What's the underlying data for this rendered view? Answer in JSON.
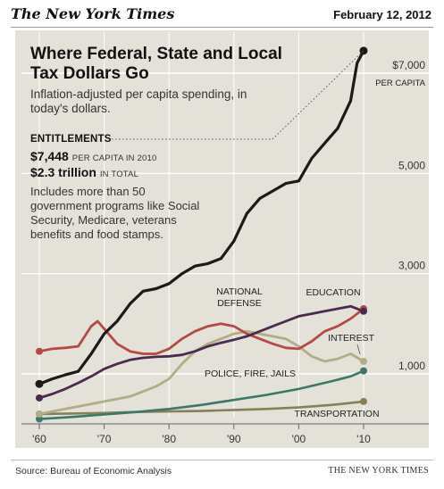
{
  "header": {
    "masthead": "The New York Times",
    "date": "February 12, 2012"
  },
  "footer": {
    "source": "Source: Bureau of Economic Analysis",
    "credit": "THE NEW YORK TIMES"
  },
  "annotation": {
    "heading": "ENTITLEMENTS",
    "value_1": "$7,448",
    "value_1_note": "PER CAPITA IN 2010",
    "value_2": "$2.3 trillion",
    "value_2_note": "IN TOTAL",
    "description": "Includes more than 50 government programs like Social Security, Medicare, veterans benefits and food stamps."
  },
  "chart_data": {
    "type": "line",
    "title": "Where Federal, State and Local Tax Dollars Go",
    "subtitle": "Inflation-adjusted per capita spending, in today's dollars.",
    "xlabel": "",
    "ylabel": "",
    "xlim": [
      1959,
      2011
    ],
    "ylim": [
      0,
      7700
    ],
    "x_ticks": [
      1960,
      1970,
      1980,
      1990,
      2000,
      2010
    ],
    "x_tick_labels": [
      "'60",
      "'70",
      "'80",
      "'90",
      "'00",
      "'10"
    ],
    "y_ticks": [
      1000,
      3000,
      5000,
      7000
    ],
    "y_tick_labels": [
      "1,000",
      "3,000",
      "5,000",
      "$7,000"
    ],
    "y_unit_label": "PER CAPITA",
    "grid": true,
    "series": [
      {
        "name": "ENTITLEMENTS",
        "color": "#1a1a1a",
        "width": 3.2,
        "x": [
          1960,
          1962,
          1964,
          1966,
          1968,
          1970,
          1972,
          1974,
          1976,
          1978,
          1980,
          1982,
          1984,
          1986,
          1988,
          1990,
          1992,
          1994,
          1996,
          1998,
          2000,
          2002,
          2004,
          2006,
          2008,
          2009,
          2010
        ],
        "y": [
          800,
          900,
          980,
          1050,
          1400,
          1800,
          2050,
          2400,
          2650,
          2700,
          2800,
          3000,
          3150,
          3200,
          3300,
          3650,
          4200,
          4500,
          4650,
          4800,
          4850,
          5300,
          5600,
          5900,
          6450,
          7200,
          7448
        ]
      },
      {
        "name": "EDUCATION",
        "color": "#4a2a4f",
        "width": 2.8,
        "x": [
          1960,
          1962,
          1964,
          1966,
          1968,
          1970,
          1972,
          1974,
          1976,
          1978,
          1980,
          1982,
          1984,
          1986,
          1988,
          1990,
          1992,
          1994,
          1996,
          1998,
          2000,
          2002,
          2004,
          2006,
          2008,
          2010
        ],
        "y": [
          520,
          600,
          700,
          820,
          950,
          1100,
          1200,
          1280,
          1320,
          1340,
          1350,
          1380,
          1450,
          1550,
          1620,
          1680,
          1750,
          1850,
          1950,
          2050,
          2150,
          2200,
          2250,
          2300,
          2350,
          2250
        ]
      },
      {
        "name": "NATIONAL DEFENSE",
        "color": "#b34a46",
        "width": 2.8,
        "x": [
          1960,
          1962,
          1964,
          1966,
          1968,
          1969,
          1970,
          1972,
          1974,
          1976,
          1978,
          1980,
          1982,
          1984,
          1986,
          1988,
          1990,
          1992,
          1994,
          1996,
          1998,
          2000,
          2002,
          2004,
          2006,
          2008,
          2010
        ],
        "y": [
          1450,
          1500,
          1520,
          1550,
          1950,
          2050,
          1900,
          1600,
          1450,
          1400,
          1400,
          1500,
          1700,
          1850,
          1950,
          2000,
          1950,
          1800,
          1700,
          1600,
          1520,
          1500,
          1650,
          1850,
          1950,
          2100,
          2300
        ]
      },
      {
        "name": "INTEREST",
        "color": "#b2ad87",
        "width": 2.8,
        "x": [
          1960,
          1962,
          1964,
          1966,
          1968,
          1970,
          1972,
          1974,
          1976,
          1978,
          1980,
          1982,
          1984,
          1986,
          1988,
          1990,
          1992,
          1994,
          1996,
          1998,
          2000,
          2002,
          2004,
          2006,
          2008,
          2010
        ],
        "y": [
          200,
          250,
          300,
          350,
          400,
          450,
          500,
          550,
          650,
          750,
          900,
          1200,
          1450,
          1600,
          1700,
          1800,
          1850,
          1800,
          1750,
          1700,
          1550,
          1350,
          1250,
          1300,
          1400,
          1250
        ]
      },
      {
        "name": "POLICE, FIRE, JAILS",
        "color": "#3c7868",
        "width": 2.6,
        "x": [
          1960,
          1965,
          1970,
          1975,
          1980,
          1985,
          1990,
          1995,
          2000,
          2005,
          2008,
          2010
        ],
        "y": [
          100,
          140,
          190,
          240,
          300,
          380,
          480,
          580,
          700,
          850,
          950,
          1060
        ]
      },
      {
        "name": "TRANSPORTATION",
        "color": "#86805a",
        "width": 2.6,
        "x": [
          1960,
          1965,
          1970,
          1975,
          1980,
          1985,
          1990,
          1995,
          2000,
          2005,
          2008,
          2010
        ],
        "y": [
          200,
          210,
          220,
          240,
          250,
          260,
          280,
          300,
          330,
          380,
          420,
          450
        ]
      }
    ]
  }
}
